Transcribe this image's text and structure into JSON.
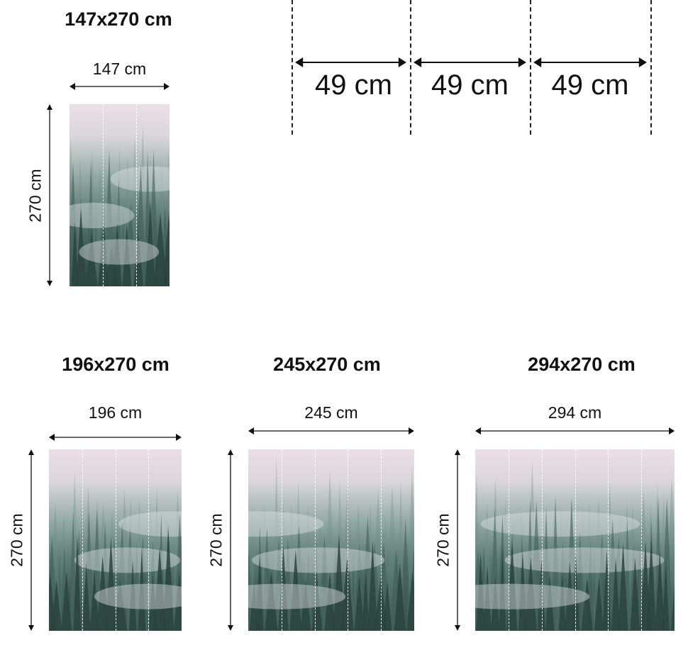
{
  "panels": [
    {
      "title": "147x270 cm",
      "width_label": "147 cm",
      "height_label": "270 cm",
      "width_cm": 147
    },
    {
      "title": "196x270 cm",
      "width_label": "196 cm",
      "height_label": "270 cm",
      "width_cm": 196
    },
    {
      "title": "245x270 cm",
      "width_label": "245 cm",
      "height_label": "270 cm",
      "width_cm": 245
    },
    {
      "title": "294x270 cm",
      "width_label": "294 cm",
      "height_label": "270 cm",
      "width_cm": 294
    }
  ],
  "strip_widths": [
    "49 cm",
    "49 cm",
    "49 cm"
  ],
  "colors": {
    "sky": "#ebdfe6",
    "forest": "#2c4740",
    "ink": "#111111"
  }
}
